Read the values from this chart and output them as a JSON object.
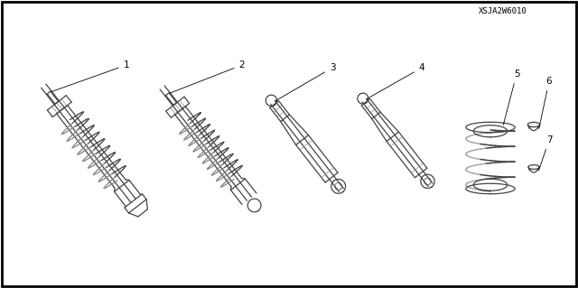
{
  "bg_color": "#ffffff",
  "part_number_code": "XSJA2W6010",
  "figsize": [
    6.4,
    3.19
  ],
  "dpi": 100,
  "lc": "#444444",
  "lw": 0.9
}
